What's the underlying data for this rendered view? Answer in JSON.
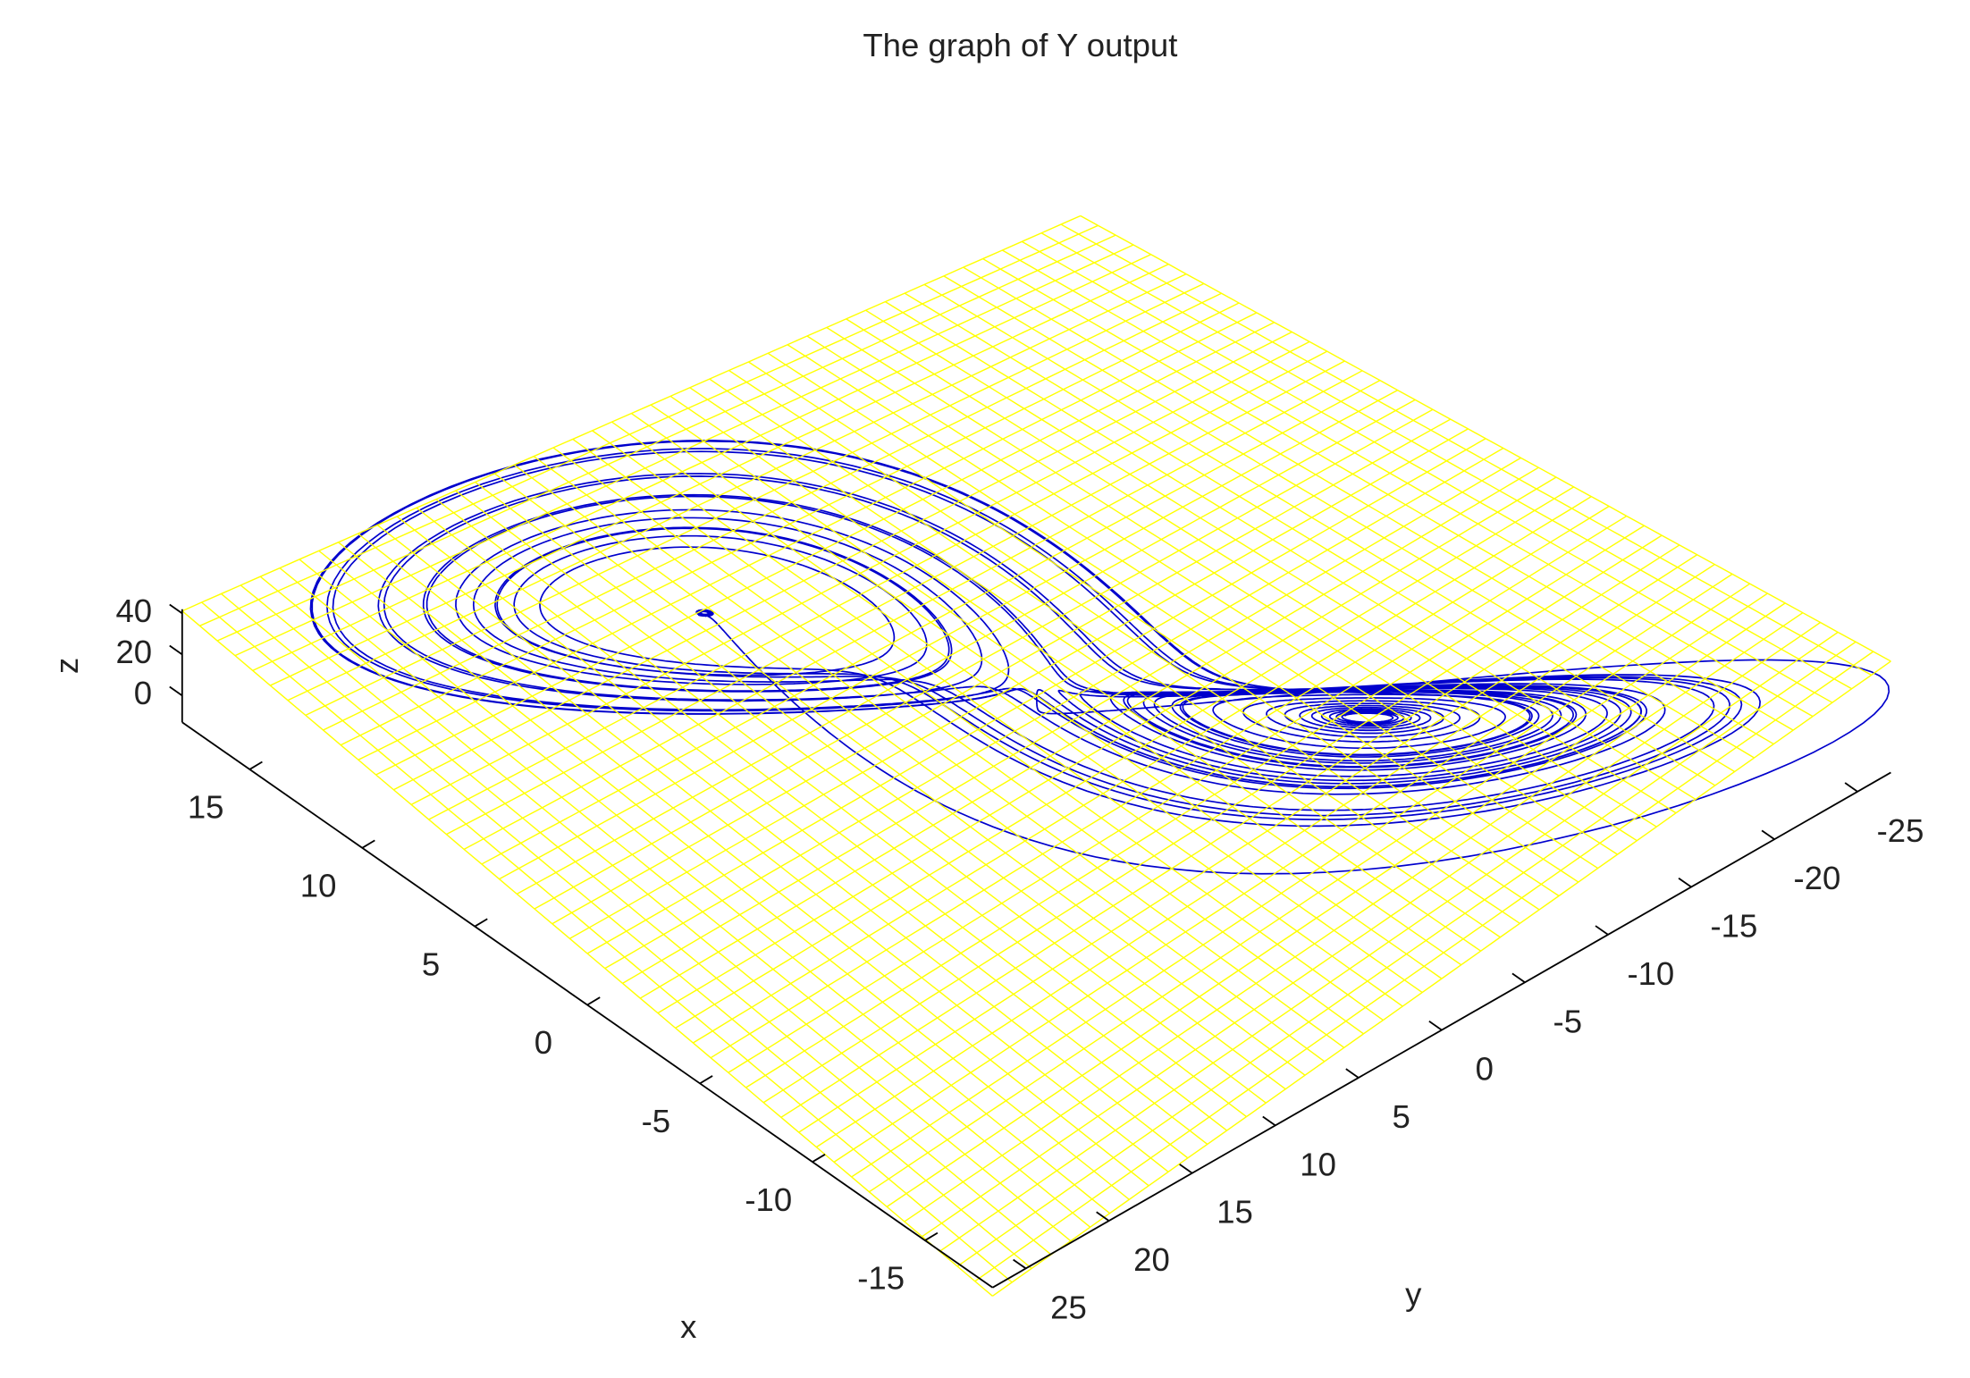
{
  "chart_data": {
    "type": "surface3d",
    "title": "The graph of Y output",
    "xlabel": "x",
    "ylabel": "y",
    "zlabel": "z",
    "xlim": [
      -18,
      18
    ],
    "ylim": [
      -27,
      27
    ],
    "zlim": [
      -13,
      42
    ],
    "xticks": [
      -15,
      -10,
      -5,
      0,
      5,
      10,
      15
    ],
    "yticks": [
      -25,
      -20,
      -15,
      -10,
      -5,
      0,
      5,
      10,
      15,
      20,
      25
    ],
    "zticks": [
      0,
      20,
      40
    ],
    "surface_color": "#ffff00",
    "line_color": "#0000cc"
  }
}
